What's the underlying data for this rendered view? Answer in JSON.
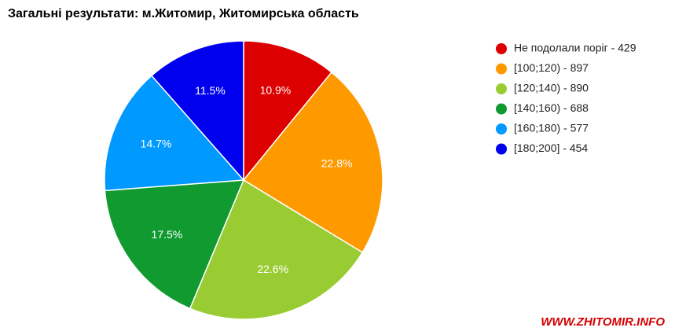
{
  "chart_data": {
    "type": "pie",
    "title": "Загальні результати: м.Житомир, Житомирська область",
    "categories": [
      "Не подолали поріг - 429",
      "[100;120) - 897",
      "[120;140) - 890",
      "[140;160) - 688",
      "[160;180) - 577",
      "[180;200] - 454"
    ],
    "values": [
      10.9,
      22.8,
      22.6,
      17.5,
      14.7,
      11.5
    ],
    "value_labels": [
      "10.9%",
      "22.8%",
      "22.6%",
      "17.5%",
      "14.7%",
      "11.5%"
    ],
    "colors": [
      "#dc0000",
      "#ff9900",
      "#99cc33",
      "#109a30",
      "#0099ff",
      "#0000ee"
    ],
    "legend": "right"
  },
  "watermark": "WWW.ZHITOMIR.INFO"
}
